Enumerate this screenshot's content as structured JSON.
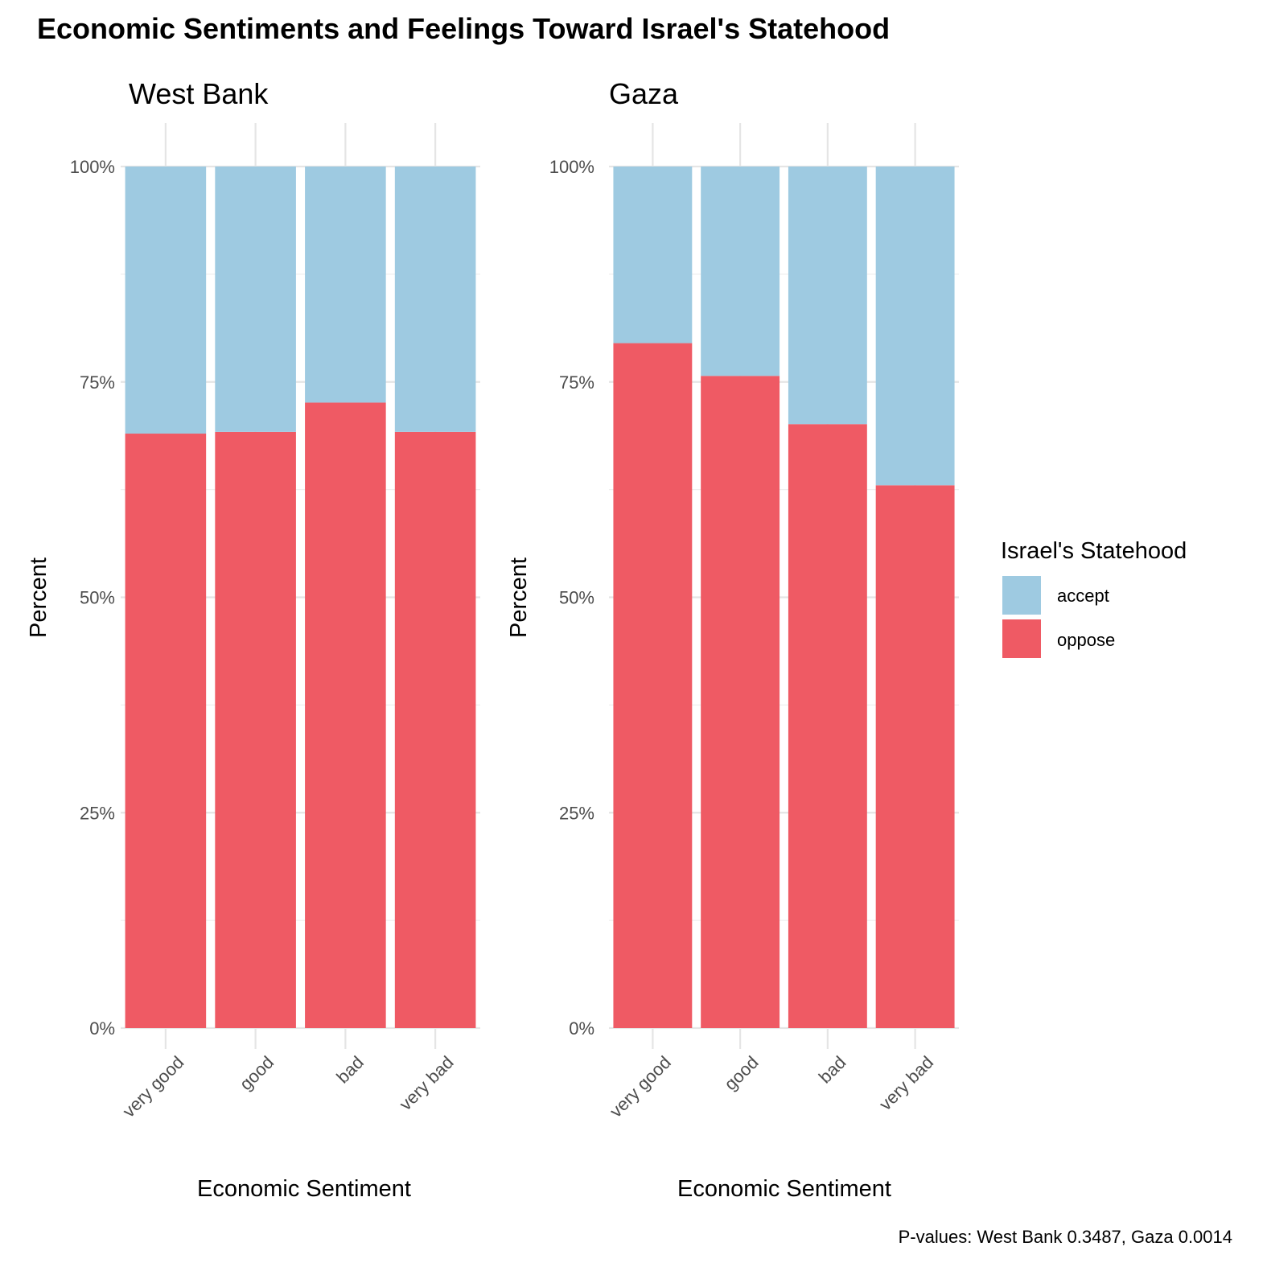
{
  "chart_data": {
    "type": "bar",
    "stacked": "fill",
    "title": "Economic Sentiments and Feelings Toward Israel's Statehood",
    "caption": "P-values: West Bank 0.3487, Gaza 0.0014",
    "xlabel": "Economic Sentiment",
    "ylabel": "Percent",
    "ylim": [
      0,
      100
    ],
    "yticks": [
      "0%",
      "25%",
      "50%",
      "75%",
      "100%"
    ],
    "categories": [
      "very good",
      "good",
      "bad",
      "very bad"
    ],
    "legend": {
      "title": "Israel's Statehood",
      "placement": "right",
      "entries": [
        {
          "name": "accept",
          "color": "#9ecae1"
        },
        {
          "name": "oppose",
          "color": "#ef5a64"
        }
      ]
    },
    "panels": [
      {
        "name": "West Bank",
        "series": [
          {
            "name": "oppose",
            "values": [
              69,
              69.2,
              72.6,
              69.2
            ]
          },
          {
            "name": "accept",
            "values": [
              31,
              30.8,
              27.4,
              30.8
            ]
          }
        ]
      },
      {
        "name": "Gaza",
        "series": [
          {
            "name": "oppose",
            "values": [
              79.5,
              75.7,
              70.1,
              63
            ]
          },
          {
            "name": "accept",
            "values": [
              20.5,
              24.3,
              29.9,
              37
            ]
          }
        ]
      }
    ]
  }
}
